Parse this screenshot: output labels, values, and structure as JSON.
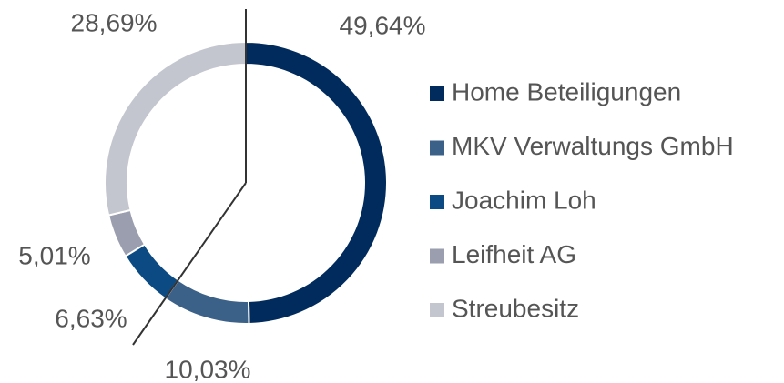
{
  "chart_data": {
    "type": "donut",
    "categories": [
      "Home Beteiligungen",
      "MKV Verwaltungs GmbH",
      "Joachim Loh",
      "Leifheit AG",
      "Streubesitz"
    ],
    "values": [
      49.64,
      10.03,
      6.63,
      5.01,
      28.69
    ],
    "value_labels": [
      "49,64%",
      "10,03%",
      "6,63%",
      "5,01%",
      "28,69%"
    ],
    "colors": [
      "#002b5c",
      "#3b6189",
      "#0b4a82",
      "#9a9eae",
      "#c3c6cf"
    ],
    "legend": "right"
  }
}
